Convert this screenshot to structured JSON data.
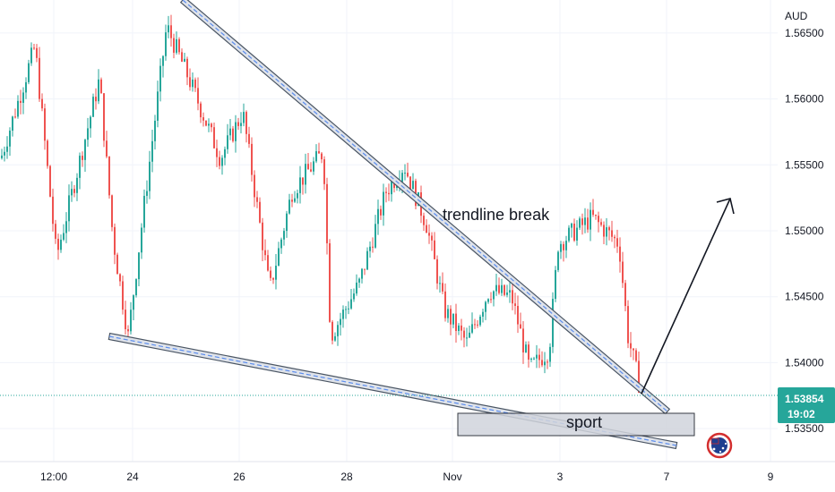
{
  "chart_data": {
    "type": "candlestick",
    "currency": "AUD",
    "y_ticks": [
      "1.56500",
      "1.56000",
      "1.55500",
      "1.55000",
      "1.54500",
      "1.54000",
      "1.53500"
    ],
    "y_range": [
      1.5325,
      1.5675
    ],
    "x_ticks": [
      "12:00",
      "24",
      "26",
      "28",
      "Nov",
      "3",
      "7",
      "9"
    ],
    "current_price": "1.53854",
    "countdown": "19:02",
    "annotations": {
      "trendline_label": "trendline break",
      "zone_label": "sport"
    },
    "trendlines": [
      {
        "name": "upper",
        "from": [
          1.5685,
          0.0
        ],
        "to": [
          1.5355,
          1.0
        ]
      },
      {
        "name": "lower",
        "from": [
          1.5429,
          0.0
        ],
        "to": [
          1.5337,
          1.0
        ]
      }
    ],
    "zone": {
      "top": 1.5373,
      "bottom": 1.5357
    },
    "colors": {
      "up": "#26a69a",
      "down": "#ef5350",
      "trendline": "#4a5563",
      "trendline_dash": "#5b8def",
      "zone_fill": "#d1d4dc",
      "price_tag": "#26a69a",
      "price_line": "#26a69a",
      "logo": "#d32f2f"
    }
  },
  "icons": {
    "logo": "australia-flag-icon"
  }
}
